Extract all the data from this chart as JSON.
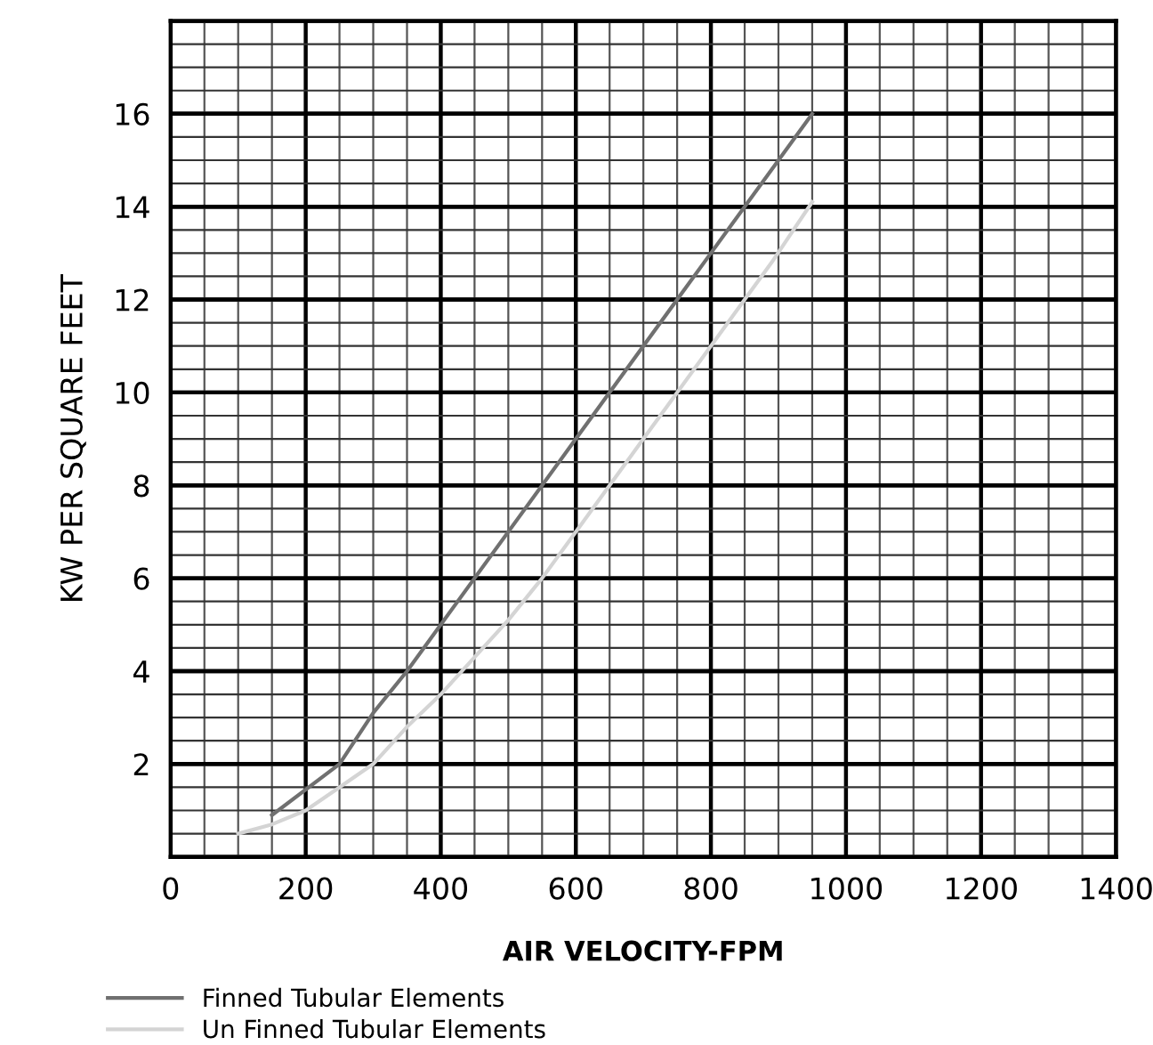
{
  "chart_data": {
    "type": "line",
    "xlabel": "AIR VELOCITY-FPM",
    "ylabel": "KW PER SQUARE FEET",
    "xlim": [
      0,
      1400
    ],
    "xticks": [
      0,
      200,
      400,
      600,
      800,
      1000,
      1200,
      1400
    ],
    "ylim": [
      0,
      18
    ],
    "yticks": [
      2,
      4,
      6,
      8,
      10,
      12,
      14,
      16
    ],
    "grid": true,
    "legend": "bottom",
    "marker": "none",
    "line_style": "solid",
    "series": [
      {
        "name": "Finned Tubular Elements",
        "color": "#707070",
        "x": [
          150,
          250,
          300,
          350,
          400,
          600,
          800,
          950
        ],
        "values": [
          0.9,
          2,
          3.1,
          4,
          5,
          9,
          13,
          16
        ]
      },
      {
        "name": "Un Finned Tubular Elements",
        "color": "#d4d4d4",
        "x": [
          100,
          150,
          200,
          250,
          300,
          350,
          400,
          450,
          500,
          550,
          600,
          650,
          700,
          750,
          800,
          845,
          890,
          950
        ],
        "values": [
          0.5,
          0.7,
          1,
          1.5,
          2,
          2.8,
          3.5,
          4.3,
          5.1,
          6,
          7,
          8,
          9,
          10,
          11,
          11.9,
          12.8,
          14.1
        ]
      }
    ]
  }
}
